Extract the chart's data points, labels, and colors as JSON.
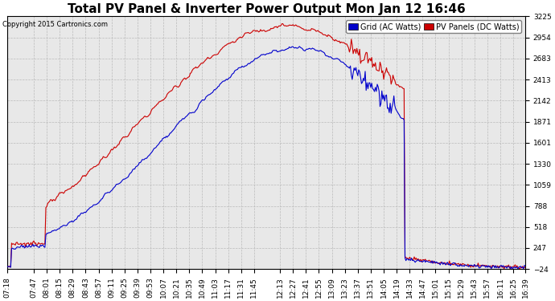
{
  "title": "Total PV Panel & Inverter Power Output Mon Jan 12 16:46",
  "copyright": "Copyright 2015 Cartronics.com",
  "legend_grid": "Grid (AC Watts)",
  "legend_pv": "PV Panels (DC Watts)",
  "grid_color": "#0000cc",
  "pv_color": "#cc0000",
  "background_color": "#ffffff",
  "plot_bg_color": "#e8e8e8",
  "grid_line_color": "#bbbbbb",
  "yticks": [
    -23.5,
    247.2,
    517.9,
    788.5,
    1059.2,
    1329.9,
    1600.6,
    1871.2,
    2141.9,
    2412.6,
    2683.3,
    2953.9,
    3224.6
  ],
  "ymin": -23.5,
  "ymax": 3224.6,
  "xtick_labels": [
    "07:18",
    "07:47",
    "08:01",
    "08:15",
    "08:29",
    "08:43",
    "08:57",
    "09:11",
    "09:25",
    "09:39",
    "09:53",
    "10:07",
    "10:21",
    "10:35",
    "10:49",
    "11:03",
    "11:17",
    "11:31",
    "11:45",
    "12:13",
    "12:27",
    "12:41",
    "12:55",
    "13:09",
    "13:23",
    "13:37",
    "13:51",
    "14:05",
    "14:19",
    "14:33",
    "14:47",
    "15:01",
    "15:15",
    "15:29",
    "15:43",
    "15:57",
    "16:11",
    "16:25",
    "16:39"
  ],
  "title_fontsize": 11,
  "tick_fontsize": 6.5,
  "legend_fontsize": 7,
  "copyright_fontsize": 6,
  "line_width": 0.8
}
